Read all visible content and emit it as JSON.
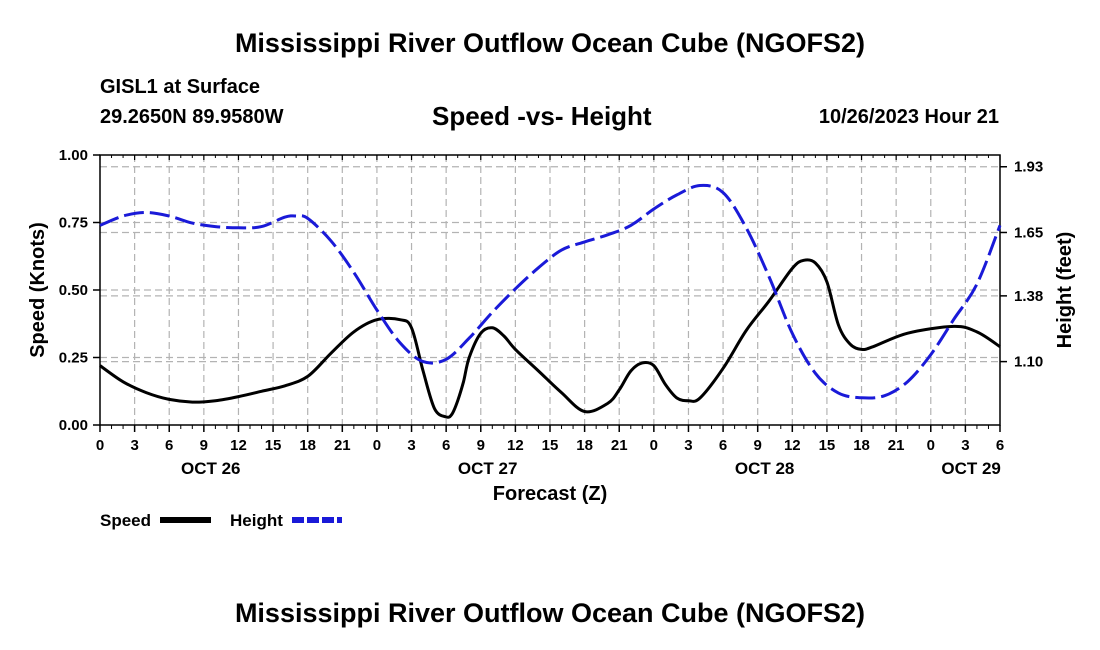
{
  "header": {
    "title": "Mississippi River Outflow Ocean Cube (NGOFS2)",
    "station": "GISL1 at Surface",
    "coords": "29.2650N  89.9580W",
    "subtitle": "Speed -vs- Height",
    "datestamp": "10/26/2023 Hour 21"
  },
  "footer": {
    "title": "Mississippi River Outflow Ocean Cube (NGOFS2)"
  },
  "chart_data": {
    "type": "line",
    "x_unit": "forecast hours from OCT 26 00Z",
    "xlim": [
      0,
      78
    ],
    "xlabel": "Forecast (Z)",
    "x_ticks": [
      {
        "x": 0,
        "label": "0"
      },
      {
        "x": 3,
        "label": "3"
      },
      {
        "x": 6,
        "label": "6"
      },
      {
        "x": 9,
        "label": "9"
      },
      {
        "x": 12,
        "label": "12"
      },
      {
        "x": 15,
        "label": "15"
      },
      {
        "x": 18,
        "label": "18"
      },
      {
        "x": 21,
        "label": "21"
      },
      {
        "x": 24,
        "label": "0"
      },
      {
        "x": 27,
        "label": "3"
      },
      {
        "x": 30,
        "label": "6"
      },
      {
        "x": 33,
        "label": "9"
      },
      {
        "x": 36,
        "label": "12"
      },
      {
        "x": 39,
        "label": "15"
      },
      {
        "x": 42,
        "label": "18"
      },
      {
        "x": 45,
        "label": "21"
      },
      {
        "x": 48,
        "label": "0"
      },
      {
        "x": 51,
        "label": "3"
      },
      {
        "x": 54,
        "label": "6"
      },
      {
        "x": 57,
        "label": "9"
      },
      {
        "x": 60,
        "label": "12"
      },
      {
        "x": 63,
        "label": "15"
      },
      {
        "x": 66,
        "label": "18"
      },
      {
        "x": 69,
        "label": "21"
      },
      {
        "x": 72,
        "label": "0"
      },
      {
        "x": 75,
        "label": "3"
      },
      {
        "x": 78,
        "label": "6"
      }
    ],
    "date_labels": [
      {
        "x": 9.6,
        "label": "OCT 26"
      },
      {
        "x": 33.6,
        "label": "OCT 27"
      },
      {
        "x": 57.6,
        "label": "OCT 28"
      },
      {
        "x": 75.5,
        "label": "OCT 29"
      }
    ],
    "left_axis": {
      "label": "Speed (Knots)",
      "ylim": [
        0,
        1
      ],
      "ticks": [
        0,
        0.25,
        0.5,
        0.75,
        1.0
      ],
      "tick_labels": [
        "0.00",
        "0.25",
        "0.50",
        "0.75",
        "1.00"
      ]
    },
    "right_axis": {
      "label": "Height (feet)",
      "ylim": [
        0.83,
        1.98
      ],
      "ticks": [
        1.1,
        1.38,
        1.65,
        1.93
      ],
      "tick_labels": [
        "1.10",
        "1.38",
        "1.65",
        "1.93"
      ]
    },
    "grid": true,
    "series": [
      {
        "name": "Speed",
        "axis": "left",
        "color": "#000000",
        "style": "solid",
        "x": [
          0,
          2,
          4,
          6,
          8,
          10,
          12,
          14,
          16,
          18,
          20,
          22,
          24,
          26,
          27,
          28,
          29,
          30,
          30.5,
          31,
          31.5,
          32,
          33,
          34,
          35,
          36,
          38,
          40,
          42,
          44,
          45,
          46,
          47,
          48,
          49,
          50,
          51,
          52,
          54,
          56,
          58,
          60,
          61,
          62,
          63,
          64,
          65,
          66,
          67,
          70,
          74,
          76,
          78
        ],
        "values": [
          0.22,
          0.16,
          0.12,
          0.095,
          0.085,
          0.09,
          0.105,
          0.125,
          0.145,
          0.18,
          0.265,
          0.345,
          0.39,
          0.39,
          0.36,
          0.2,
          0.06,
          0.03,
          0.04,
          0.09,
          0.16,
          0.25,
          0.34,
          0.36,
          0.33,
          0.28,
          0.2,
          0.12,
          0.05,
          0.08,
          0.13,
          0.2,
          0.23,
          0.22,
          0.15,
          0.1,
          0.09,
          0.1,
          0.21,
          0.35,
          0.46,
          0.58,
          0.61,
          0.6,
          0.53,
          0.37,
          0.3,
          0.28,
          0.29,
          0.34,
          0.365,
          0.345,
          0.29
        ]
      },
      {
        "name": "Height",
        "axis": "right",
        "color": "#1a1ad8",
        "style": "dashed",
        "x": [
          0,
          2,
          4,
          6,
          8,
          10,
          12,
          14,
          16,
          17,
          18,
          20,
          22,
          24,
          26,
          28,
          30,
          32,
          34,
          36,
          38,
          40,
          42,
          44,
          46,
          48,
          50,
          52,
          54,
          56,
          58,
          60,
          62,
          64,
          66,
          68,
          70,
          72,
          74,
          76,
          78
        ],
        "values": [
          1.68,
          1.72,
          1.735,
          1.72,
          1.69,
          1.675,
          1.67,
          1.675,
          1.715,
          1.72,
          1.71,
          1.615,
          1.48,
          1.32,
          1.18,
          1.1,
          1.11,
          1.2,
          1.31,
          1.41,
          1.5,
          1.575,
          1.61,
          1.64,
          1.68,
          1.75,
          1.81,
          1.85,
          1.82,
          1.67,
          1.46,
          1.22,
          1.05,
          0.966,
          0.946,
          0.955,
          1.015,
          1.13,
          1.28,
          1.43,
          1.68
        ]
      }
    ],
    "legend": {
      "placement": "bottom-left",
      "entries": [
        {
          "label": "Speed",
          "color": "#000000",
          "style": "solid"
        },
        {
          "label": "Height",
          "color": "#1a1ad8",
          "style": "dashed"
        }
      ]
    }
  }
}
